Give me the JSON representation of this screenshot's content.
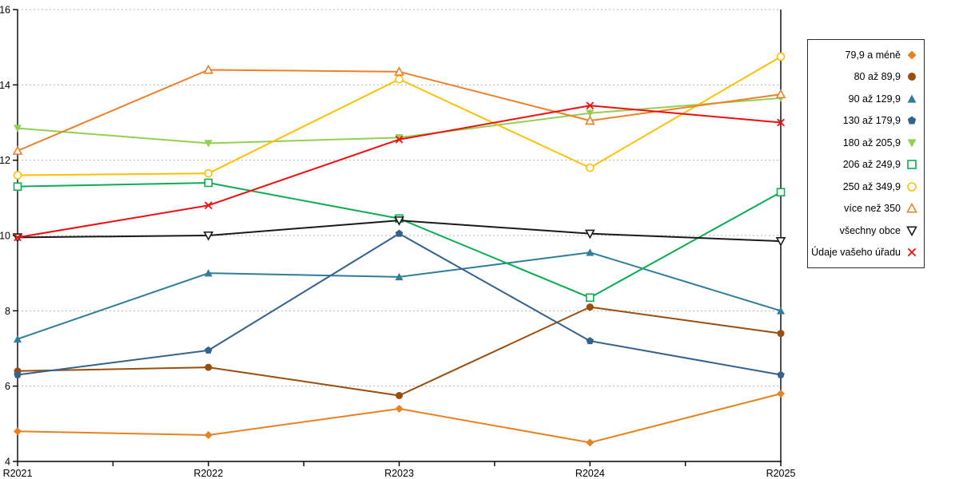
{
  "chart_data": {
    "type": "line",
    "title": "",
    "xlabel": "",
    "ylabel": "",
    "x_categories": [
      "R2021",
      "R2022",
      "R2023",
      "R2024",
      "R2025"
    ],
    "ylim": [
      4,
      16
    ],
    "y_ticks": [
      4,
      6,
      8,
      10,
      12,
      14,
      16
    ],
    "grid": "horizontal-dashed",
    "gridline_color": "#b3b3b3",
    "axis_color": "#000000",
    "legend_position": "right-outside-boxed",
    "series": [
      {
        "name": "79,9 a méně",
        "marker": "diamond",
        "filled": true,
        "color": "#E8821E",
        "values": [
          4.8,
          4.7,
          5.4,
          4.5,
          5.8
        ]
      },
      {
        "name": "80 až 89,9",
        "marker": "circle",
        "filled": true,
        "color": "#9A4E0E",
        "values": [
          6.4,
          6.5,
          5.75,
          8.1,
          7.4
        ]
      },
      {
        "name": "90 až 129,9",
        "marker": "triangle-up",
        "filled": true,
        "color": "#2F7E99",
        "values": [
          7.25,
          9.0,
          8.9,
          9.55,
          8.0
        ]
      },
      {
        "name": "130 až 179,9",
        "marker": "pentagon",
        "filled": true,
        "color": "#35618F",
        "values": [
          6.3,
          6.95,
          10.05,
          7.2,
          6.3
        ]
      },
      {
        "name": "180 až 205,9",
        "marker": "triangle-down",
        "filled": true,
        "color": "#92D050",
        "values": [
          12.85,
          12.45,
          12.6,
          13.25,
          13.65
        ]
      },
      {
        "name": "206 až 249,9",
        "marker": "square",
        "filled": false,
        "color": "#0CAC52",
        "values": [
          11.3,
          11.4,
          10.45,
          8.35,
          11.15
        ]
      },
      {
        "name": "250 až 349,9",
        "marker": "circle",
        "filled": false,
        "color": "#FFC000",
        "values": [
          11.6,
          11.65,
          14.15,
          11.8,
          14.75
        ]
      },
      {
        "name": "více než 350",
        "marker": "triangle-up",
        "filled": false,
        "color": "#F07F29",
        "values": [
          12.25,
          14.4,
          14.35,
          13.05,
          13.75
        ]
      },
      {
        "name": "všechny obce",
        "marker": "triangle-down",
        "filled": false,
        "color": "#1A1A1A",
        "values": [
          9.95,
          10.0,
          10.4,
          10.05,
          9.85
        ]
      },
      {
        "name": "Údaje vašeho úřadu",
        "marker": "x",
        "filled": false,
        "color": "#F20D0D",
        "values": [
          9.95,
          10.8,
          12.55,
          13.45,
          13.0
        ]
      }
    ]
  }
}
